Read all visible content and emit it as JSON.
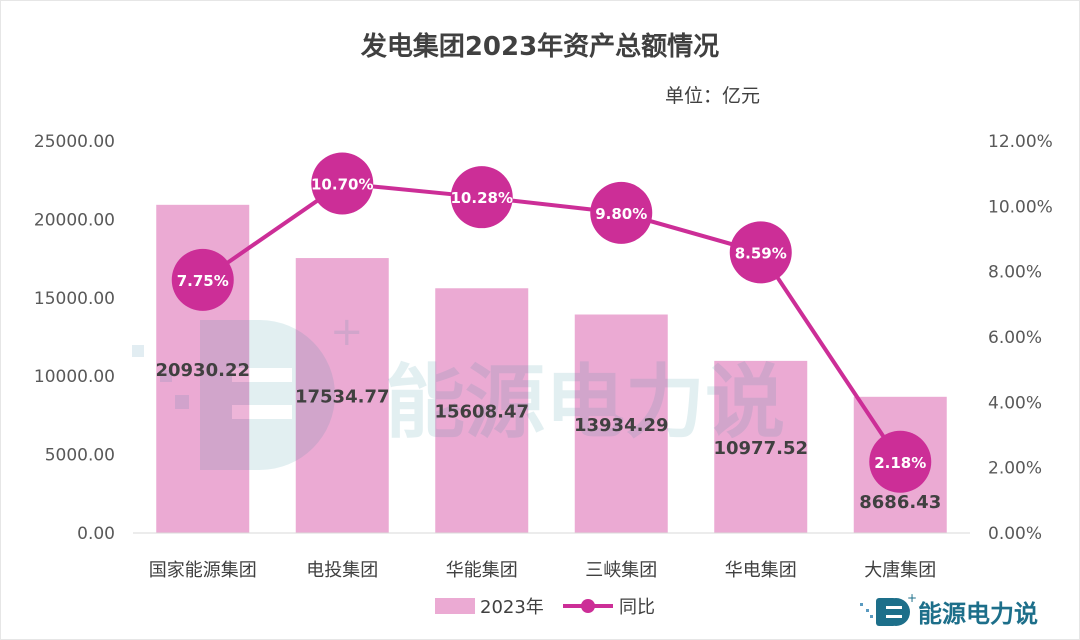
{
  "chart_data": {
    "type": "bar+line",
    "title": "发电集团2023年资产总额情况",
    "unit_label": "单位：亿元",
    "categories": [
      "国家能源集团",
      "电投集团",
      "华能集团",
      "三峡集团",
      "华电集团",
      "大唐集团"
    ],
    "series": [
      {
        "name": "2023年",
        "type": "bar",
        "axis": "left",
        "values": [
          20930.22,
          17534.77,
          15608.47,
          13934.29,
          10977.52,
          8686.43
        ],
        "labels": [
          "20930.22",
          "17534.77",
          "15608.47",
          "13934.29",
          "10977.52",
          "8686.43"
        ],
        "color": "#EBAAD3"
      },
      {
        "name": "同比",
        "type": "line",
        "axis": "right",
        "values": [
          7.75,
          10.7,
          10.28,
          9.8,
          8.59,
          2.18
        ],
        "labels": [
          "7.75%",
          "10.70%",
          "10.28%",
          "9.80%",
          "8.59%",
          "2.18%"
        ],
        "color": "#CC2E97"
      }
    ],
    "left_axis": {
      "range": [
        0,
        25000
      ],
      "ticks": [
        "0.00",
        "5000.00",
        "10000.00",
        "15000.00",
        "20000.00",
        "25000.00"
      ]
    },
    "right_axis": {
      "range": [
        0,
        12
      ],
      "ticks": [
        "0.00%",
        "2.00%",
        "4.00%",
        "6.00%",
        "8.00%",
        "10.00%",
        "12.00%"
      ]
    },
    "legend": {
      "placement": "bottom",
      "items": [
        "2023年",
        "同比"
      ]
    },
    "grid": false
  },
  "watermark": "能源电力说",
  "logo": {
    "text": "能源电力说",
    "letter": "E"
  }
}
